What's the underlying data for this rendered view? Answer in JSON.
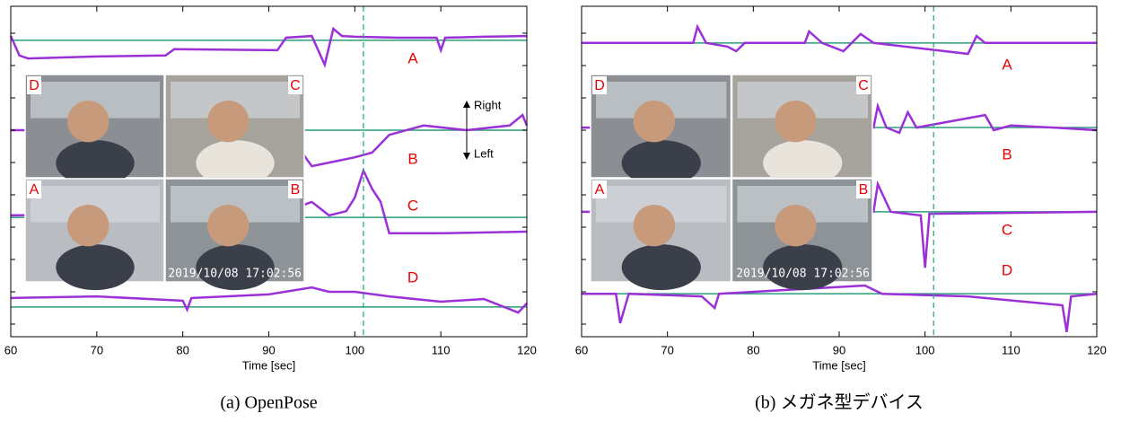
{
  "chart_data": [
    {
      "type": "line",
      "caption": "(a) OpenPose",
      "xlabel": "Time [sec]",
      "xlim": [
        60,
        120
      ],
      "xticks": [
        60,
        70,
        80,
        90,
        100,
        110,
        120
      ],
      "ylim": [
        0,
        100
      ],
      "marker_x": 101,
      "annotations": [
        "Right",
        "Left"
      ],
      "inset": {
        "labels": [
          "D",
          "C",
          "A",
          "B"
        ],
        "timestamp": "2019/10/08 17:02:56"
      },
      "series": [
        {
          "name": "A",
          "color": "#9b30d9",
          "baseline": 89.7,
          "x": [
            60,
            61,
            62,
            70,
            78,
            79,
            91,
            92,
            95,
            96.5,
            97.5,
            98.5,
            100,
            105,
            109.5,
            110,
            110.5,
            115,
            120
          ],
          "values": [
            91.0,
            85.1,
            84.2,
            84.8,
            85.1,
            87.0,
            86.7,
            90.5,
            91.0,
            82.3,
            93.2,
            91.0,
            90.8,
            90.5,
            90.5,
            86.7,
            90.5,
            90.8,
            91.0
          ]
        },
        {
          "name": "B",
          "color": "#9b30d9",
          "baseline": 62.5,
          "x": [
            60,
            92,
            95,
            100,
            102,
            104,
            108,
            113,
            118,
            119.5,
            120
          ],
          "values": [
            62.5,
            62.5,
            51.6,
            54.3,
            55.7,
            61.1,
            63.9,
            62.5,
            63.9,
            67.1,
            63.9
          ]
        },
        {
          "name": "C",
          "color": "#9b30d9",
          "baseline": 36.1,
          "x": [
            60,
            92,
            95,
            97,
            99,
            100,
            101,
            102,
            103,
            104,
            110,
            120
          ],
          "values": [
            36.7,
            38.0,
            40.8,
            36.7,
            38.0,
            42.1,
            50.3,
            44.8,
            40.8,
            31.3,
            31.3,
            31.8
          ]
        },
        {
          "name": "D",
          "color": "#9b30d9",
          "baseline": 9.0,
          "x": [
            60,
            70,
            80,
            80.5,
            81,
            90,
            95,
            97,
            100,
            104,
            110,
            115,
            119,
            120
          ],
          "values": [
            11.7,
            12.2,
            10.9,
            8.2,
            11.7,
            12.8,
            14.9,
            13.6,
            13.6,
            12.2,
            10.6,
            11.4,
            7.3,
            10.1
          ]
        }
      ]
    },
    {
      "type": "line",
      "caption": "(b) メガネ型デバイス",
      "xlabel": "Time [sec]",
      "xlim": [
        60,
        120
      ],
      "xticks": [
        60,
        70,
        80,
        90,
        100,
        110,
        120
      ],
      "ylim": [
        0,
        100
      ],
      "marker_x": 101,
      "inset": {
        "labels": [
          "D",
          "C",
          "A",
          "B"
        ],
        "timestamp": "2019/10/08 17:02:56"
      },
      "series": [
        {
          "name": "A",
          "color": "#9b30d9",
          "baseline": 88.9,
          "x": [
            60,
            73,
            73.5,
            74.5,
            77,
            78,
            79,
            86,
            86.5,
            88,
            90.5,
            92.5,
            94,
            105,
            106,
            107,
            120
          ],
          "values": [
            88.9,
            88.9,
            93.8,
            88.9,
            87.8,
            86.4,
            88.9,
            88.9,
            92.4,
            88.9,
            86.4,
            91.6,
            88.9,
            85.6,
            91.0,
            88.9,
            88.9
          ]
        },
        {
          "name": "B",
          "color": "#9b30d9",
          "baseline": 63.3,
          "x": [
            60,
            94,
            94.5,
            95.5,
            97,
            98,
            99,
            107,
            108,
            110,
            115,
            120
          ],
          "values": [
            63.3,
            63.3,
            69.8,
            63.3,
            61.7,
            67.9,
            63.3,
            67.1,
            62.5,
            63.9,
            63.3,
            62.5
          ]
        },
        {
          "name": "C",
          "color": "#9b30d9",
          "baseline": 37.8,
          "x": [
            60,
            94,
            94.5,
            96,
            99.5,
            100,
            100.5,
            120
          ],
          "values": [
            37.8,
            37.8,
            46.2,
            37.8,
            36.7,
            20.9,
            37.2,
            37.8
          ]
        },
        {
          "name": "D",
          "color": "#9b30d9",
          "baseline": 13.0,
          "x": [
            60,
            64,
            64.5,
            65.5,
            74,
            75.5,
            76,
            93,
            95,
            105,
            116,
            116.5,
            117,
            120
          ],
          "values": [
            13.0,
            13.0,
            4.1,
            13.0,
            12.2,
            8.7,
            13.0,
            15.5,
            13.0,
            12.2,
            9.5,
            1.4,
            12.2,
            13.0
          ]
        }
      ]
    }
  ]
}
